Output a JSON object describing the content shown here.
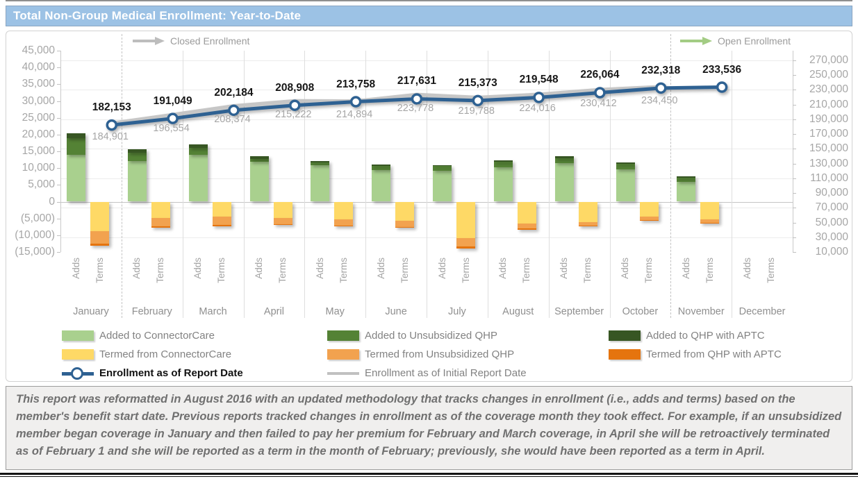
{
  "title": "Total Non-Group Medical Enrollment: Year-to-Date",
  "annotations": {
    "closed": "Closed Enrollment",
    "open": "Open Enrollment"
  },
  "months": [
    "January",
    "February",
    "March",
    "April",
    "May",
    "June",
    "July",
    "August",
    "September",
    "October",
    "November",
    "December"
  ],
  "sub_labels": [
    "Adds",
    "Terms"
  ],
  "axes": {
    "left": {
      "labels": [
        "45,000",
        "40,000",
        "35,000",
        "30,000",
        "25,000",
        "20,000",
        "15,000",
        "10,000",
        "5,000",
        "0",
        "(5,000)",
        "(10,000)",
        "(15,000)"
      ],
      "values": [
        45000,
        40000,
        35000,
        30000,
        25000,
        20000,
        15000,
        10000,
        5000,
        0,
        -5000,
        -10000,
        -15000
      ]
    },
    "right": {
      "labels": [
        "270,000",
        "250,000",
        "230,000",
        "210,000",
        "190,000",
        "170,000",
        "150,000",
        "130,000",
        "110,000",
        "90,000",
        "70,000",
        "50,000",
        "30,000",
        "10,000"
      ],
      "values": [
        270000,
        250000,
        230000,
        210000,
        190000,
        170000,
        150000,
        130000,
        110000,
        90000,
        70000,
        50000,
        30000,
        10000
      ]
    }
  },
  "chart_data": {
    "type": "bar+line",
    "title": "Total Non-Group Medical Enrollment: Year-to-Date",
    "categories": [
      "January",
      "February",
      "March",
      "April",
      "May",
      "June",
      "July",
      "August",
      "September",
      "October",
      "November",
      "December"
    ],
    "left_axis_range": [
      -15000,
      45000
    ],
    "right_axis_range": [
      10000,
      270000
    ],
    "grid": "faint horizontal",
    "bar_series": [
      {
        "name": "Added to ConnectorCare",
        "color": "#a9d08e",
        "values": [
          13950,
          12050,
          13900,
          11800,
          10800,
          9350,
          9200,
          10200,
          11400,
          9550,
          5850,
          0
        ]
      },
      {
        "name": "Added to Unsubsidized QHP",
        "color": "#548235",
        "values": [
          4950,
          2600,
          2050,
          1000,
          950,
          1350,
          1400,
          1650,
          1600,
          1750,
          1250,
          0
        ]
      },
      {
        "name": "Added to QHP with APTC",
        "color": "#375623",
        "values": [
          1450,
          1050,
          1050,
          700,
          350,
          350,
          350,
          450,
          500,
          450,
          350,
          0
        ]
      },
      {
        "name": "Termed from ConnectorCare",
        "color": "#fed966",
        "values": [
          -8700,
          -4950,
          -4400,
          -4900,
          -5300,
          -5750,
          -10900,
          -6550,
          -6050,
          -4500,
          -5200,
          0
        ]
      },
      {
        "name": "Termed from Unsubsidized QHP",
        "color": "#f2a24f",
        "values": [
          -3800,
          -2350,
          -2450,
          -1800,
          -1750,
          -1850,
          -2400,
          -1500,
          -1100,
          -1050,
          -1150,
          0
        ]
      },
      {
        "name": "Termed from QHP with APTC",
        "color": "#e5740e",
        "values": [
          -700,
          -500,
          -400,
          -300,
          -250,
          -250,
          -600,
          -250,
          -150,
          -150,
          -250,
          0
        ]
      }
    ],
    "line_series": [
      {
        "name": "Enrollment as of Report Date",
        "color": "#2e6192",
        "values": [
          182153,
          191049,
          202184,
          208908,
          213758,
          217631,
          215373,
          219548,
          226064,
          232318,
          233536,
          null
        ]
      },
      {
        "name": "Enrollment as of Initial Report Date",
        "color": "#c6c6c6",
        "values": [
          184901,
          196554,
          208374,
          215222,
          214894,
          223778,
          219788,
          224016,
          230412,
          234450,
          null,
          null
        ]
      }
    ]
  },
  "legend": {
    "rows": [
      [
        {
          "label": "Added to ConnectorCare",
          "type": "rect",
          "color": "#a9d08e"
        },
        {
          "label": "Added to Unsubsidized QHP",
          "type": "rect",
          "color": "#548235"
        },
        {
          "label": "Added to QHP with APTC",
          "type": "rect",
          "color": "#375623"
        }
      ],
      [
        {
          "label": "Termed from ConnectorCare",
          "type": "rect",
          "color": "#fed966"
        },
        {
          "label": "Termed from Unsubsidized QHP",
          "type": "rect",
          "color": "#f2a24f"
        },
        {
          "label": "Termed from QHP with APTC",
          "type": "rect",
          "color": "#e5740e"
        }
      ],
      [
        {
          "label": "Enrollment as of Report Date",
          "type": "line-marker",
          "color": "#2e6192",
          "bold": true
        },
        {
          "label": "Enrollment as of Initial Report Date",
          "type": "line",
          "color": "#c0c0c0"
        }
      ]
    ]
  },
  "footer": {
    "text": "This report was reformatted in August 2016 with an updated methodology that tracks changes in enrollment (i.e., adds and terms) based on the member's benefit start date.  Previous reports tracked changes in enrollment as of the coverage month they took effect.  For example, if an unsubsidized member began coverage in January and then failed to pay her premium for February and March coverage, in April she will be retroactively terminated as of February 1 and she will be reported as a term in the month of February; previously, she would have been reported as a term in April.",
    "colors": {
      "closed_arrow": "#bdbdbd",
      "open_arrow": "#a3cc84",
      "title_bg": "#9cc2e5"
    }
  }
}
